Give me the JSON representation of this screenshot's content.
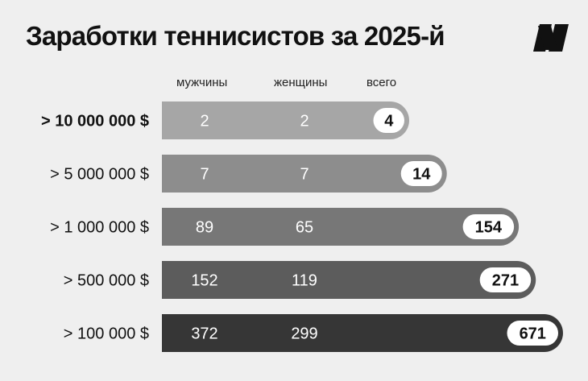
{
  "title": "Заработки теннисистов за 2025-й",
  "logo": {
    "icon": "brand-logo-icon",
    "color": "#111111"
  },
  "column_headers": {
    "men": "мужчины",
    "women": "женщины",
    "total": "всего"
  },
  "chart_data": {
    "type": "bar",
    "title": "Заработки теннисистов за 2025-й",
    "categories": [
      "> 10 000 000 $",
      "> 5 000 000 $",
      "> 1 000 000 $",
      "> 500 000 $",
      "> 100 000 $"
    ],
    "series": [
      {
        "name": "мужчины",
        "values": [
          2,
          7,
          89,
          152,
          372
        ]
      },
      {
        "name": "женщины",
        "values": [
          2,
          7,
          65,
          119,
          299
        ]
      },
      {
        "name": "всего",
        "values": [
          4,
          14,
          154,
          271,
          671
        ]
      }
    ],
    "bar_colors": [
      "#a6a6a6",
      "#8d8d8d",
      "#777777",
      "#5c5c5c",
      "#363636"
    ],
    "badge_color": "#ffffff",
    "grid": false
  }
}
